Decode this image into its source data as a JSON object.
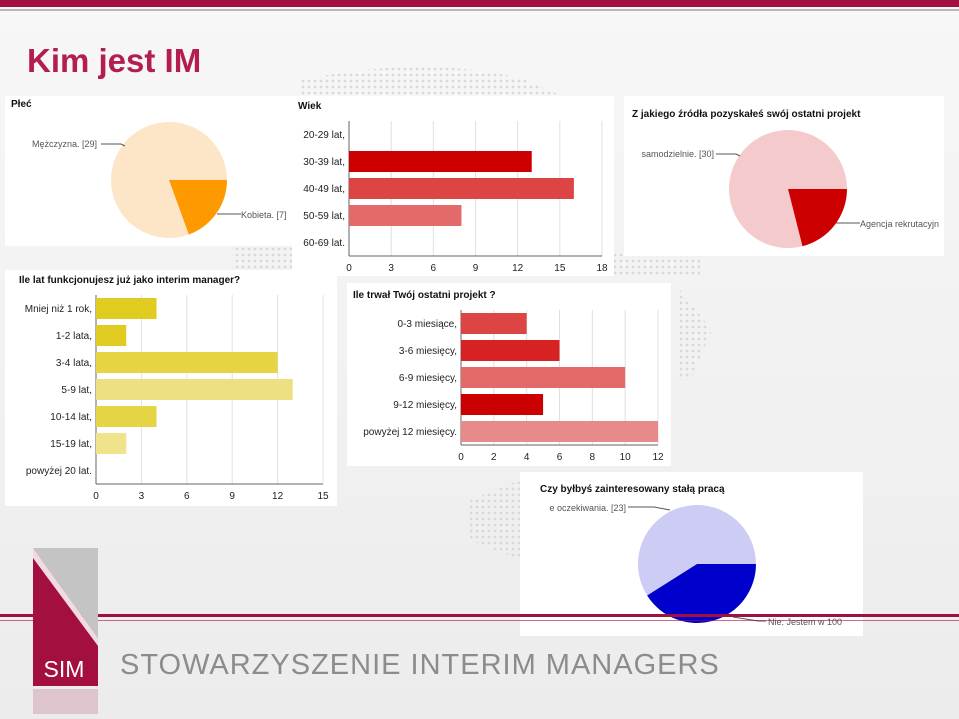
{
  "slide": {
    "title": "Kim jest IM",
    "org_abbrev": "SIM",
    "org_name": "STOWARZYSZENIE INTERIM MANAGERS"
  },
  "colors": {
    "brand": "#a30f3e",
    "title": "#b41e4e",
    "pie_light": "#fde5c8",
    "pie_orange": "#ff9900",
    "pie_pink": "#f5cacd",
    "pie_red": "#cc0000",
    "pie_lavender": "#ccccf5",
    "pie_blue": "#0000cc"
  },
  "chart_data": [
    {
      "id": "plec",
      "type": "pie",
      "title": "Płeć",
      "labels": [
        "Mężczyzna. [29]",
        "Kobieta. [7]"
      ],
      "values": [
        29,
        7
      ],
      "colors": [
        "#fde5c8",
        "#ff9900"
      ]
    },
    {
      "id": "wiek",
      "type": "bar",
      "orientation": "horizontal",
      "title": "Wiek",
      "categories": [
        "20-29 lat,",
        "30-39 lat,",
        "40-49 lat,",
        "50-59 lat,",
        "60-69 lat."
      ],
      "values": [
        0,
        13,
        16,
        8,
        0
      ],
      "colors": [
        "#cc0000",
        "#cc0000",
        "#dd4444",
        "#e36a6a",
        "#cc0000"
      ],
      "xlim": [
        0,
        18
      ],
      "ticks": [
        0,
        3,
        6,
        9,
        12,
        15,
        18
      ]
    },
    {
      "id": "zrodlo",
      "type": "pie",
      "title": "Z jakiego źródła pozyskałeś swój ostatni projekt",
      "labels": [
        "samodzielnie. [30]",
        "Agencja rekrutacyjn"
      ],
      "values": [
        30,
        8
      ],
      "colors": [
        "#f5cacd",
        "#cc0000"
      ]
    },
    {
      "id": "lata",
      "type": "bar",
      "orientation": "horizontal",
      "title": "Ile lat funkcjonujesz już jako interim manager?",
      "categories": [
        "Mniej niż 1 rok,",
        "1-2 lata,",
        "3-4 lata,",
        "5-9 lat,",
        "10-14 lat,",
        "15-19 lat,",
        "powyżej 20 lat."
      ],
      "values": [
        4,
        2,
        12,
        13,
        4,
        2,
        0
      ],
      "colors": [
        "#e0cc20",
        "#e0cc20",
        "#e5d545",
        "#ede080",
        "#e5d545",
        "#efe38c",
        "#e0cc20"
      ],
      "xlim": [
        0,
        15
      ],
      "ticks": [
        0,
        3,
        6,
        9,
        12,
        15
      ]
    },
    {
      "id": "projekt",
      "type": "bar",
      "orientation": "horizontal",
      "title": "Ile trwał Twój ostatni projekt ?",
      "categories": [
        "0-3 miesiące,",
        "3-6 miesięcy,",
        "6-9 miesięcy,",
        "9-12 miesięcy,",
        "powyżej 12 miesięcy."
      ],
      "values": [
        4,
        6,
        10,
        5,
        12
      ],
      "colors": [
        "#dd4444",
        "#d62222",
        "#e36a6a",
        "#cc0000",
        "#e88a8a"
      ],
      "xlim": [
        0,
        12
      ],
      "ticks": [
        0,
        2,
        4,
        6,
        8,
        10,
        12
      ]
    },
    {
      "id": "stala",
      "type": "pie",
      "title": "Czy byłbyś zainteresowany stałą pracą",
      "labels": [
        "e oczekiwania. [23]",
        "Nie. Jestem w 100"
      ],
      "values": [
        23,
        16
      ],
      "colors": [
        "#ccccf5",
        "#0000cc"
      ]
    }
  ]
}
